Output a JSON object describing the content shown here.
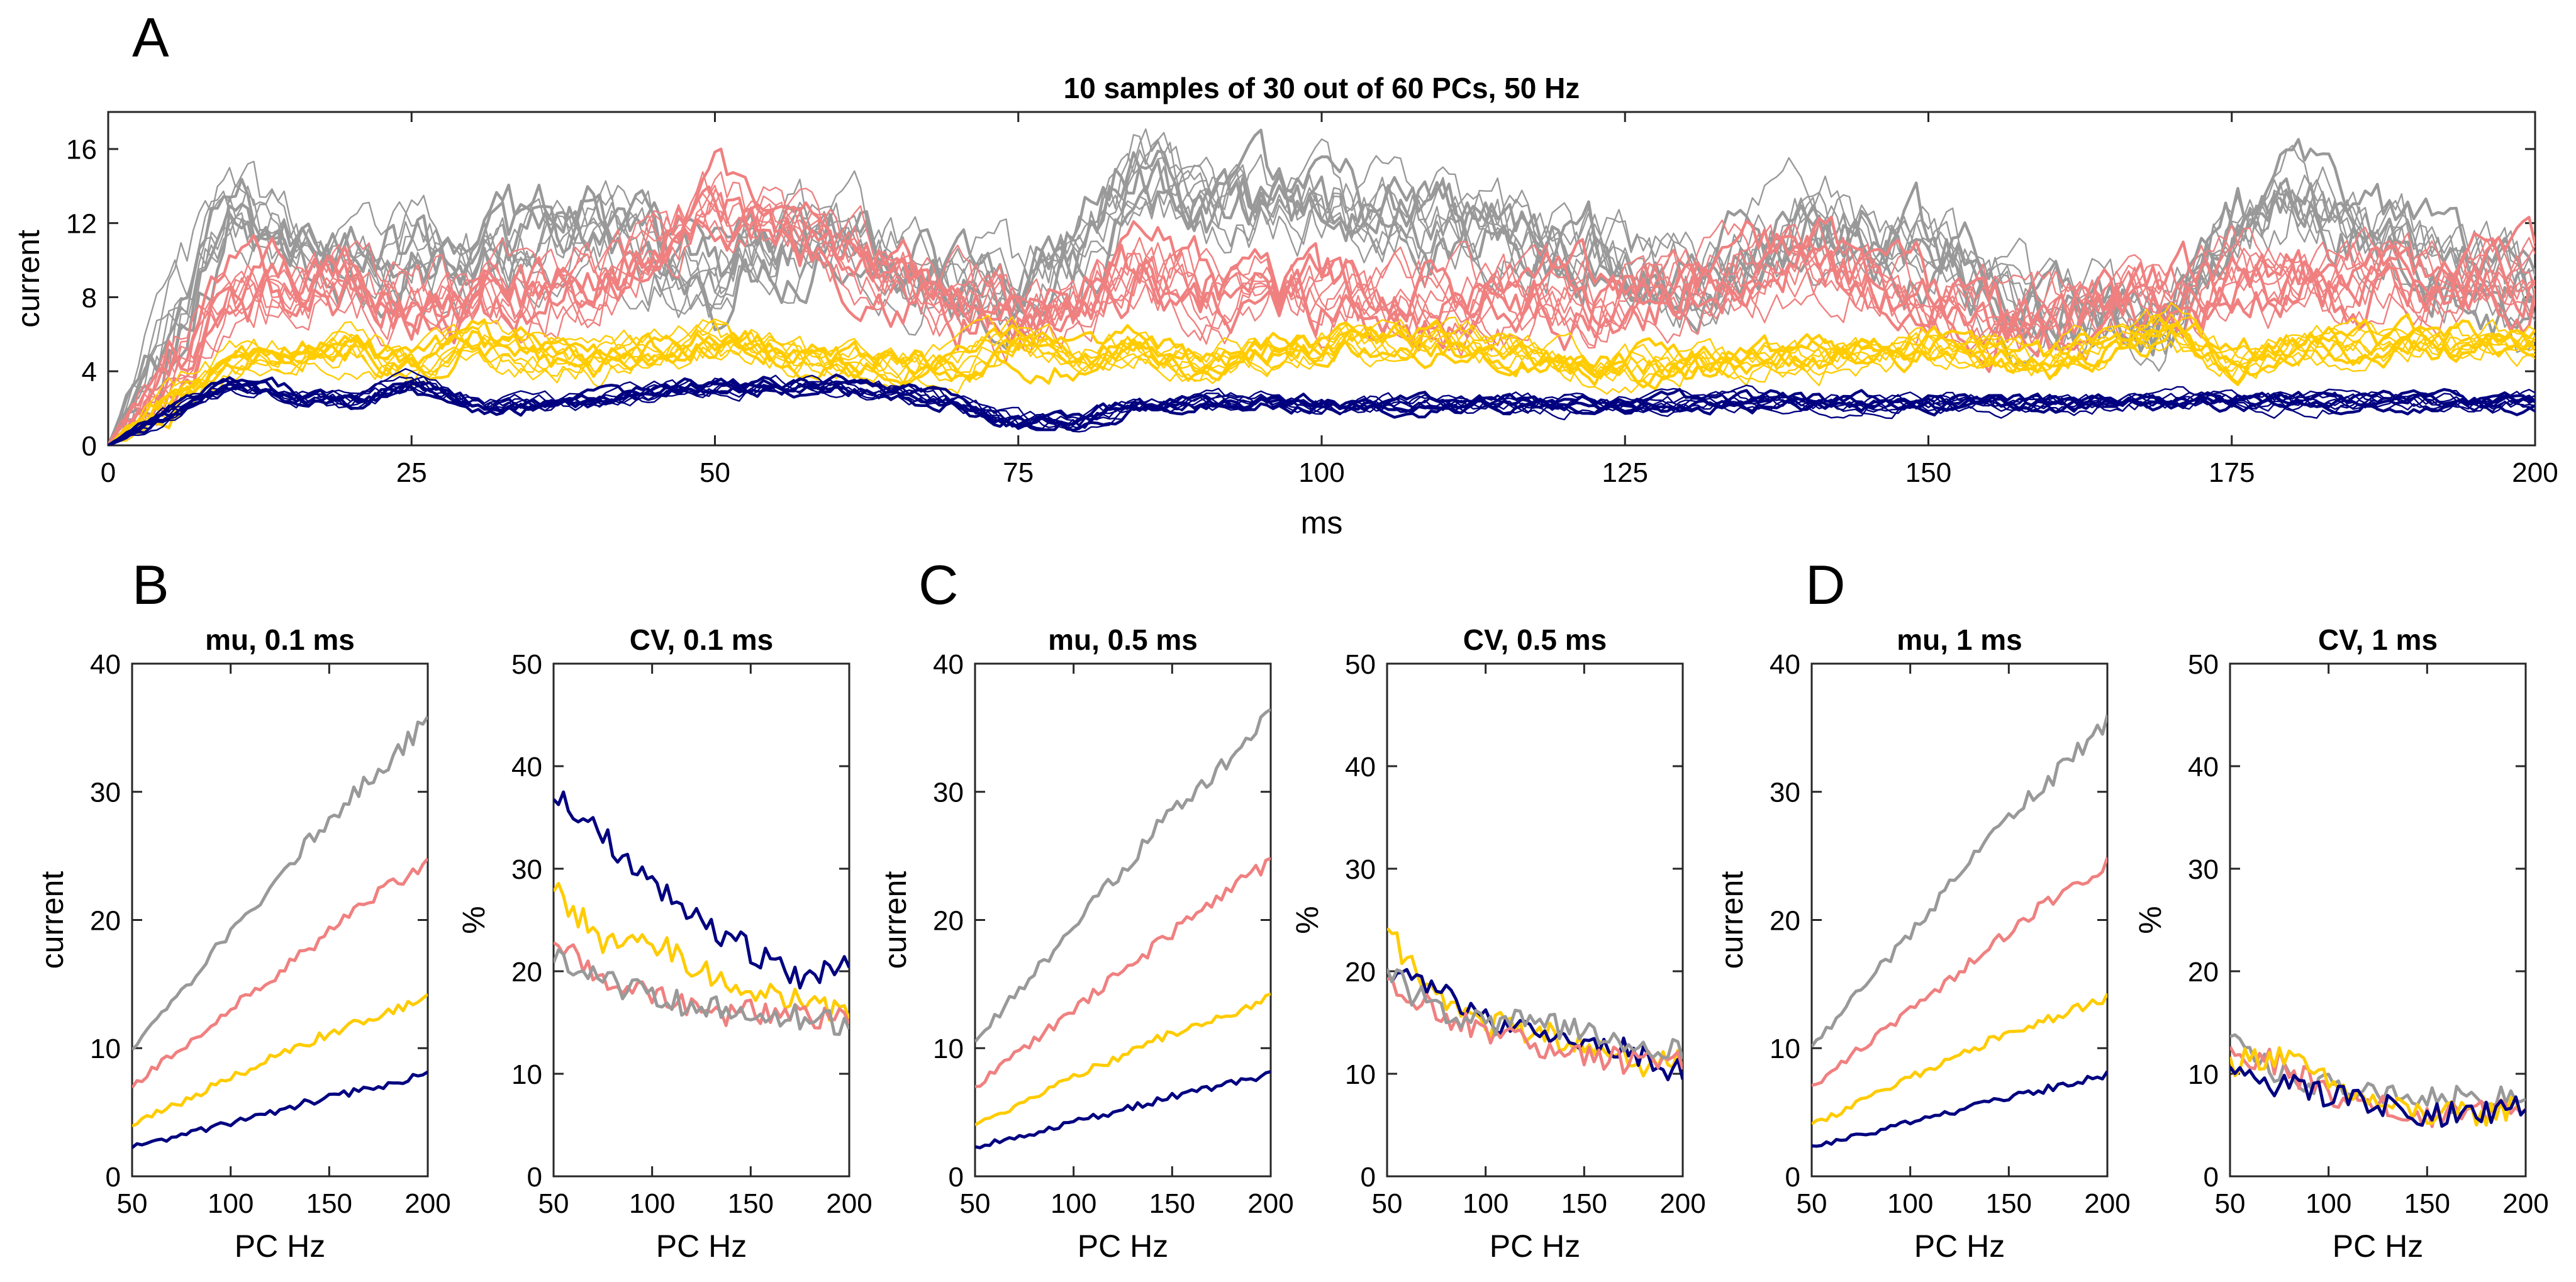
{
  "figure": {
    "panel_letters": [
      "A",
      "B",
      "C",
      "D"
    ]
  },
  "colors": {
    "gray": "#999999",
    "salmon": "#f08080",
    "gold": "#ffcc00",
    "navy": "#000080",
    "axis": "#262626"
  },
  "chart_data": [
    {
      "id": "A",
      "type": "line",
      "title": "10 samples of 30 out of 60 PCs, 50 Hz",
      "xlabel": "ms",
      "ylabel": "current",
      "xlim": [
        0,
        200
      ],
      "ylim": [
        0,
        18
      ],
      "xticks": [
        0,
        25,
        50,
        75,
        100,
        125,
        150,
        175,
        200
      ],
      "yticks": [
        0,
        4,
        8,
        12,
        16
      ],
      "samples_per_series": 10,
      "series": [
        {
          "name": "gray",
          "color": "#999999",
          "x": [
            0,
            10,
            20,
            25,
            30,
            40,
            50,
            60,
            70,
            75,
            80,
            85,
            90,
            100,
            110,
            120,
            130,
            140,
            150,
            160,
            170,
            175,
            180,
            190,
            200
          ],
          "y": [
            0,
            12,
            9,
            10,
            9,
            11,
            8,
            11,
            8,
            8,
            10,
            14,
            12,
            12,
            11,
            10,
            8,
            11,
            10,
            7,
            6,
            11,
            13,
            10,
            7
          ]
        },
        {
          "name": "salmon",
          "color": "#f08080",
          "x": [
            0,
            10,
            20,
            25,
            30,
            40,
            50,
            60,
            70,
            75,
            80,
            85,
            90,
            100,
            110,
            120,
            130,
            140,
            150,
            160,
            170,
            175,
            180,
            190,
            200
          ],
          "y": [
            0,
            7,
            8,
            7,
            7,
            8,
            12,
            10,
            7,
            6,
            6,
            9,
            8,
            7,
            7,
            7,
            8,
            9,
            7,
            6,
            7,
            8,
            8,
            8,
            8
          ]
        },
        {
          "name": "gold",
          "color": "#ffcc00",
          "x": [
            0,
            10,
            20,
            25,
            30,
            40,
            50,
            60,
            70,
            75,
            80,
            85,
            90,
            100,
            110,
            120,
            130,
            140,
            150,
            160,
            170,
            175,
            180,
            190,
            200
          ],
          "y": [
            0,
            4,
            5,
            4,
            5,
            4,
            5,
            4,
            4,
            5,
            4,
            5,
            4,
            5,
            5,
            4,
            4,
            4,
            5,
            4,
            6,
            4,
            5,
            5,
            5
          ]
        },
        {
          "name": "navy",
          "color": "#000080",
          "x": [
            0,
            10,
            20,
            25,
            30,
            40,
            50,
            60,
            70,
            75,
            80,
            85,
            90,
            100,
            110,
            120,
            130,
            140,
            150,
            160,
            170,
            175,
            180,
            190,
            200
          ],
          "y": [
            0,
            3,
            2,
            3,
            2,
            2,
            3,
            3,
            2,
            1,
            1,
            2,
            2,
            2,
            2,
            2,
            2,
            2,
            2,
            2,
            2,
            2,
            2,
            2,
            2
          ]
        }
      ]
    },
    {
      "id": "B-mu",
      "type": "line",
      "title": "mu, 0.1 ms",
      "xlabel": "PC Hz",
      "ylabel": "current",
      "xlim": [
        50,
        200
      ],
      "ylim": [
        0,
        40
      ],
      "xticks": [
        50,
        100,
        150,
        200
      ],
      "yticks": [
        0,
        10,
        20,
        30,
        40
      ],
      "x": [
        50,
        75,
        100,
        125,
        150,
        175,
        200
      ],
      "series": [
        {
          "name": "gray",
          "color": "#999999",
          "values": [
            10,
            14.5,
            19,
            23.5,
            28,
            31.5,
            35.5
          ]
        },
        {
          "name": "salmon",
          "color": "#f08080",
          "values": [
            7,
            10,
            13,
            16,
            19,
            22,
            24.5
          ]
        },
        {
          "name": "gold",
          "color": "#ffcc00",
          "values": [
            4,
            5.8,
            7.7,
            9.5,
            11.2,
            12.5,
            14
          ]
        },
        {
          "name": "navy",
          "color": "#000080",
          "values": [
            2.3,
            3.2,
            4.2,
            5.2,
            6.2,
            7,
            8
          ]
        }
      ]
    },
    {
      "id": "B-cv",
      "type": "line",
      "title": "CV, 0.1 ms",
      "xlabel": "PC Hz",
      "ylabel": "%",
      "xlim": [
        50,
        200
      ],
      "ylim": [
        0,
        50
      ],
      "xticks": [
        50,
        100,
        150,
        200
      ],
      "yticks": [
        0,
        10,
        20,
        30,
        40,
        50
      ],
      "x": [
        50,
        75,
        100,
        125,
        150,
        175,
        200
      ],
      "series": [
        {
          "name": "navy",
          "color": "#000080",
          "values": [
            37,
            33,
            29,
            25,
            22,
            19,
            21
          ]
        },
        {
          "name": "gold",
          "color": "#ffcc00",
          "values": [
            28,
            23,
            23,
            20,
            18,
            17,
            16
          ]
        },
        {
          "name": "salmon",
          "color": "#f08080",
          "values": [
            23,
            19,
            18,
            16,
            16,
            15.5,
            15.5
          ]
        },
        {
          "name": "gray",
          "color": "#999999",
          "values": [
            21,
            19,
            17.5,
            16.5,
            15.5,
            15.5,
            15
          ]
        }
      ]
    },
    {
      "id": "C-mu",
      "type": "line",
      "title": "mu, 0.5 ms",
      "xlabel": "PC Hz",
      "ylabel": "current",
      "xlim": [
        50,
        200
      ],
      "ylim": [
        0,
        40
      ],
      "xticks": [
        50,
        100,
        150,
        200
      ],
      "yticks": [
        0,
        10,
        20,
        30,
        40
      ],
      "x": [
        50,
        75,
        100,
        125,
        150,
        175,
        200
      ],
      "series": [
        {
          "name": "gray",
          "color": "#999999",
          "values": [
            10.5,
            15,
            19.5,
            24,
            28.5,
            32,
            36
          ]
        },
        {
          "name": "salmon",
          "color": "#f08080",
          "values": [
            7,
            10,
            13,
            16,
            19,
            22,
            24.5
          ]
        },
        {
          "name": "gold",
          "color": "#ffcc00",
          "values": [
            4,
            5.8,
            7.7,
            9.5,
            11.2,
            12.5,
            14
          ]
        },
        {
          "name": "navy",
          "color": "#000080",
          "values": [
            2.3,
            3.2,
            4.2,
            5.2,
            6.2,
            7,
            8
          ]
        }
      ]
    },
    {
      "id": "C-cv",
      "type": "line",
      "title": "CV, 0.5 ms",
      "xlabel": "PC Hz",
      "ylabel": "%",
      "xlim": [
        50,
        200
      ],
      "ylim": [
        0,
        50
      ],
      "xticks": [
        50,
        100,
        150,
        200
      ],
      "yticks": [
        0,
        10,
        20,
        30,
        40,
        50
      ],
      "x": [
        50,
        75,
        100,
        125,
        150,
        175,
        200
      ],
      "series": [
        {
          "name": "gold",
          "color": "#ffcc00",
          "values": [
            24,
            17,
            15,
            14,
            13,
            11,
            11
          ]
        },
        {
          "name": "navy",
          "color": "#000080",
          "values": [
            20,
            18,
            15,
            14,
            13,
            12,
            10
          ]
        },
        {
          "name": "salmon",
          "color": "#f08080",
          "values": [
            19,
            16,
            14,
            13,
            12,
            11,
            11
          ]
        },
        {
          "name": "gray",
          "color": "#999999",
          "values": [
            20,
            16,
            15,
            15,
            14,
            13,
            12
          ]
        }
      ]
    },
    {
      "id": "D-mu",
      "type": "line",
      "title": "mu, 1 ms",
      "xlabel": "PC Hz",
      "ylabel": "current",
      "xlim": [
        50,
        200
      ],
      "ylim": [
        0,
        40
      ],
      "xticks": [
        50,
        100,
        150,
        200
      ],
      "yticks": [
        0,
        10,
        20,
        30,
        40
      ],
      "x": [
        50,
        75,
        100,
        125,
        150,
        175,
        200
      ],
      "series": [
        {
          "name": "gray",
          "color": "#999999",
          "values": [
            10,
            14.5,
            19,
            23.5,
            28,
            31.5,
            35.5
          ]
        },
        {
          "name": "salmon",
          "color": "#f08080",
          "values": [
            7,
            10,
            13,
            16,
            19,
            22,
            24.5
          ]
        },
        {
          "name": "gold",
          "color": "#ffcc00",
          "values": [
            4,
            5.8,
            7.7,
            9.5,
            11.2,
            12.5,
            14
          ]
        },
        {
          "name": "navy",
          "color": "#000080",
          "values": [
            2.3,
            3.2,
            4.2,
            5.2,
            6.2,
            7,
            8
          ]
        }
      ]
    },
    {
      "id": "D-cv",
      "type": "line",
      "title": "CV, 1 ms",
      "xlabel": "PC Hz",
      "ylabel": "%",
      "xlim": [
        50,
        200
      ],
      "ylim": [
        0,
        50
      ],
      "xticks": [
        50,
        100,
        150,
        200
      ],
      "yticks": [
        0,
        10,
        20,
        30,
        40,
        50
      ],
      "x": [
        50,
        75,
        100,
        125,
        150,
        175,
        200
      ],
      "series": [
        {
          "name": "gray",
          "color": "#999999",
          "values": [
            13,
            10,
            9,
            8,
            7.5,
            7.5,
            8
          ]
        },
        {
          "name": "salmon",
          "color": "#f08080",
          "values": [
            12,
            11,
            8,
            7,
            6,
            6,
            7
          ]
        },
        {
          "name": "gold",
          "color": "#ffcc00",
          "values": [
            11,
            12,
            9,
            7,
            6,
            6,
            7
          ]
        },
        {
          "name": "navy",
          "color": "#000080",
          "values": [
            10,
            9,
            8,
            7,
            6,
            6,
            7
          ]
        }
      ]
    }
  ]
}
